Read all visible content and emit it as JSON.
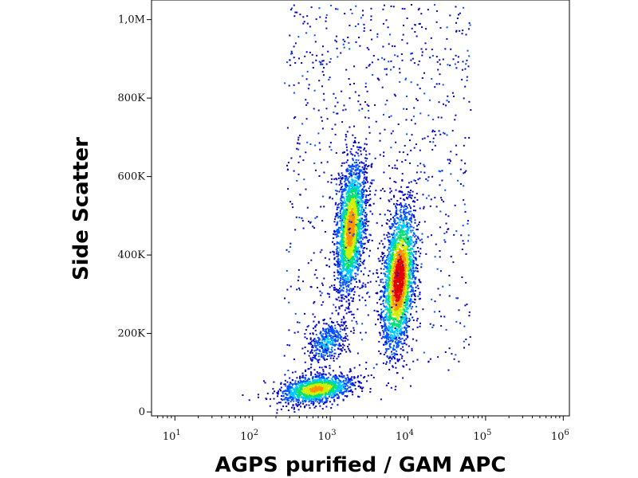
{
  "chart_data": {
    "type": "scatter",
    "subtype": "flow-cytometry-density-plot",
    "title": "",
    "xlabel": "AGPS purified / GAM APC",
    "ylabel": "Side Scatter",
    "x_scale": "log",
    "xlim": [
      5,
      1200000
    ],
    "ylim": [
      -10000,
      1050000
    ],
    "x_ticks": [
      {
        "value": 10,
        "label_base": "10",
        "label_exp": "1"
      },
      {
        "value": 100,
        "label_base": "10",
        "label_exp": "2"
      },
      {
        "value": 1000,
        "label_base": "10",
        "label_exp": "3"
      },
      {
        "value": 10000,
        "label_base": "10",
        "label_exp": "4"
      },
      {
        "value": 100000,
        "label_base": "10",
        "label_exp": "5"
      },
      {
        "value": 1000000,
        "label_base": "10",
        "label_exp": "6"
      }
    ],
    "y_ticks": [
      {
        "value": 0,
        "label": "0"
      },
      {
        "value": 200000,
        "label": "200K"
      },
      {
        "value": 400000,
        "label": "400K"
      },
      {
        "value": 600000,
        "label": "600K"
      },
      {
        "value": 800000,
        "label": "800K"
      },
      {
        "value": 1000000,
        "label": "1,0M"
      }
    ],
    "color_scale": [
      "#0000c8",
      "#0050ff",
      "#00c8ff",
      "#00e070",
      "#d0f000",
      "#ff9000",
      "#e00000"
    ],
    "populations": [
      {
        "x_center": 650,
        "y_center": 60000,
        "x_log_sd": 0.22,
        "y_sd": 18000,
        "points": 1400,
        "density_peak": 0.75
      },
      {
        "x_center": 900,
        "y_center": 180000,
        "x_log_sd": 0.12,
        "y_sd": 30000,
        "points": 400,
        "density_peak": 0.3
      },
      {
        "x_center": 1800,
        "y_center": 470000,
        "x_log_sd": 0.09,
        "y_sd": 85000,
        "points": 2200,
        "density_peak": 0.8
      },
      {
        "x_center": 7500,
        "y_center": 340000,
        "x_log_sd": 0.1,
        "y_sd": 90000,
        "points": 2600,
        "density_peak": 1.0
      }
    ],
    "grid": false
  }
}
